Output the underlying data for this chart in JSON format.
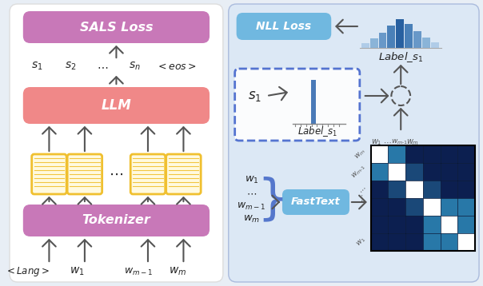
{
  "bg_color": "#e8eef5",
  "left_bg": "#ffffff",
  "right_bg": "#dce8f5",
  "sals_color": "#c878b8",
  "llm_color": "#f08888",
  "tokenizer_color": "#c878b8",
  "fasttext_color": "#70b8e0",
  "nll_color": "#70b8e0",
  "embed_face": "#fffae0",
  "embed_edge": "#f0c030",
  "arrow_color": "#555555",
  "dashed_color": "#4466cc",
  "curly_color": "#5577cc",
  "text_color": "#222222",
  "matrix_border": "#111111",
  "hist_colors": [
    "#b0cce8",
    "#8ab4d8",
    "#6898c8",
    "#4a80b8",
    "#2860a0",
    "#4a80b8",
    "#6898c8",
    "#8ab4d8",
    "#b0cce8"
  ],
  "hist_heights": [
    6,
    12,
    19,
    28,
    36,
    30,
    21,
    13,
    7
  ],
  "sim_matrix": [
    [
      1.0,
      0.35,
      0.05,
      0.05,
      0.05
    ],
    [
      0.35,
      1.0,
      0.25,
      0.05,
      0.05
    ],
    [
      0.05,
      0.25,
      1.0,
      0.25,
      0.05
    ],
    [
      0.05,
      0.05,
      0.25,
      1.0,
      0.35
    ],
    [
      0.05,
      0.05,
      0.05,
      0.35,
      1.0
    ]
  ]
}
